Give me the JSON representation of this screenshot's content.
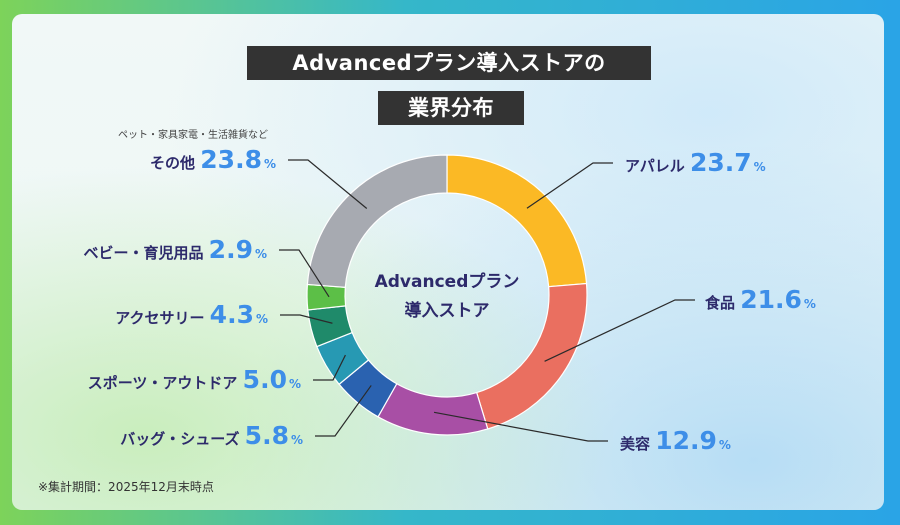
{
  "title": {
    "line1": "Advancedプラン導入ストアの",
    "line2": "業界分布"
  },
  "center_label": {
    "line1": "Advancedプラン",
    "line2": "導入ストア"
  },
  "footnote": "※集計期間：2025年12月末時点",
  "colors": {
    "label_text": "#2d2a6b",
    "value_text": "#3d8ee8",
    "title_bg": "#333333"
  },
  "chart_data": {
    "type": "pie",
    "donut": true,
    "categories": [
      "アパレル",
      "食品",
      "美容",
      "バッグ・シューズ",
      "スポーツ・アウトドア",
      "アクセサリー",
      "ベビー・育児用品",
      "その他"
    ],
    "values": [
      23.7,
      21.6,
      12.9,
      5.8,
      5.0,
      4.3,
      2.9,
      23.8
    ],
    "unit": "%",
    "colors": [
      "#fbb925",
      "#ea6f60",
      "#a84fa5",
      "#2a62b0",
      "#2799b3",
      "#1f8a6a",
      "#5cbf47",
      "#a7aab1"
    ],
    "annotations": [
      {
        "category": "その他",
        "text": "ペット・家具家電・生活雑貨など"
      }
    ],
    "legend": "none"
  }
}
